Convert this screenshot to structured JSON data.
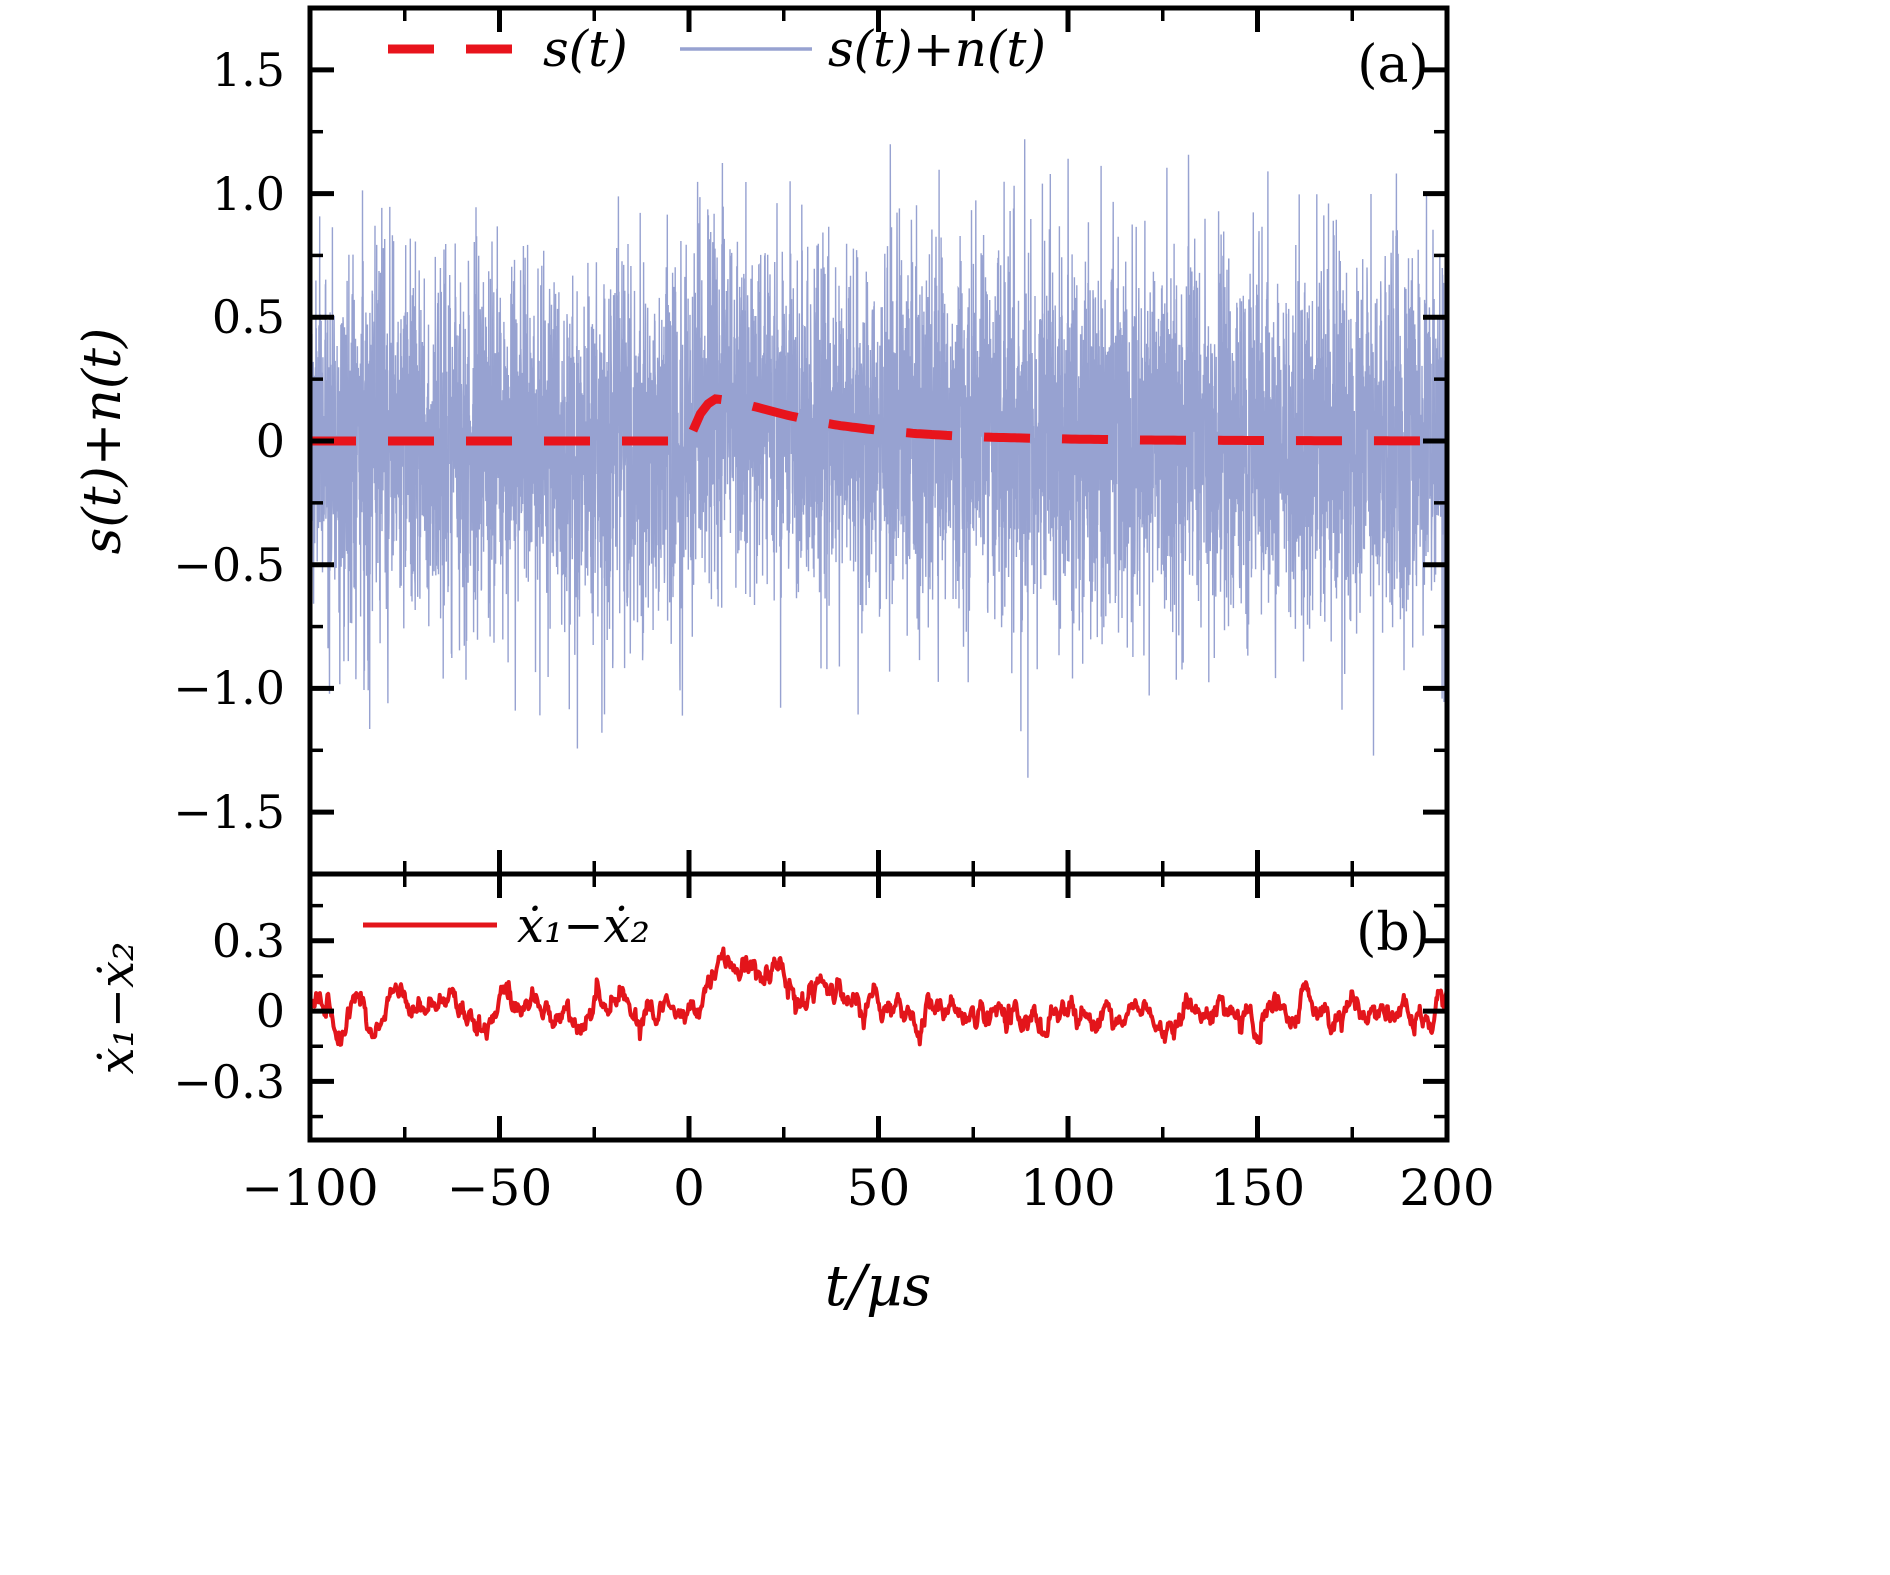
{
  "figure": {
    "panel_a_label": "(a)",
    "panel_b_label": "(b)"
  },
  "colors": {
    "frame": "#000000",
    "signal_red": "#e8141c",
    "noise_blue": "#97a2d1",
    "diff_red": "#e3151b"
  },
  "chart_data": {
    "type": "line",
    "x_axis": {
      "label": "t/µs",
      "lim": [
        -100,
        200
      ],
      "major_ticks": [
        -100,
        -50,
        0,
        50,
        100,
        150,
        200
      ],
      "tick_labels": [
        "−100",
        "−50",
        "0",
        "50",
        "100",
        "150",
        "200"
      ],
      "minor_ticks": [
        -75,
        -25,
        25,
        75,
        125,
        175
      ]
    },
    "panels": [
      {
        "id": "a",
        "corner_label": "(a)",
        "ylabel": "s(t)+n(t)",
        "ylim": [
          -1.75,
          1.75
        ],
        "major_ticks": [
          1.5,
          1.0,
          0.5,
          0,
          -0.5,
          -1.0,
          -1.5
        ],
        "tick_labels": [
          "1.5",
          "1.0",
          "0.5",
          "0",
          "−0.5",
          "−1.0",
          "−1.5"
        ],
        "minor_ticks": [
          -1.25,
          -0.75,
          -0.25,
          0.25,
          0.75,
          1.25
        ],
        "legend": [
          {
            "label": "s(t)",
            "color": "#e8141c",
            "line": "dashed"
          },
          {
            "label": "s(t)+n(t)",
            "color": "#97a2d1",
            "line": "solid"
          }
        ],
        "series": [
          {
            "name": "s(t)",
            "type": "deterministic-pulse",
            "color": "#e8141c",
            "dashed": true,
            "points": [
              [
                -100,
                0
              ],
              [
                0,
                0
              ],
              [
                1,
                0.04
              ],
              [
                3,
                0.11
              ],
              [
                5,
                0.15
              ],
              [
                7,
                0.17
              ],
              [
                10,
                0.165
              ],
              [
                15,
                0.148
              ],
              [
                20,
                0.128
              ],
              [
                25,
                0.108
              ],
              [
                30,
                0.09
              ],
              [
                35,
                0.075
              ],
              [
                40,
                0.062
              ],
              [
                50,
                0.043
              ],
              [
                60,
                0.03
              ],
              [
                70,
                0.021
              ],
              [
                80,
                0.015
              ],
              [
                100,
                0.008
              ],
              [
                120,
                0.004
              ],
              [
                150,
                0.002
              ],
              [
                200,
                0
              ]
            ]
          },
          {
            "name": "s(t)+n(t)",
            "type": "signal-plus-noise",
            "color": "#97a2d1",
            "noise_sigma": 0.37,
            "seed": 1234,
            "n_points": 6000
          }
        ]
      },
      {
        "id": "b",
        "corner_label": "(b)",
        "ylabel": "ẋ₁−ẋ₂",
        "ylim": [
          -0.55,
          0.585
        ],
        "major_ticks": [
          0.3,
          0,
          -0.3
        ],
        "tick_labels": [
          "0.3",
          "0",
          "−0.3"
        ],
        "minor_ticks": [
          -0.45,
          -0.15,
          0.15,
          0.45
        ],
        "legend": [
          {
            "label": "ẋ₁−ẋ₂",
            "color": "#e3151b",
            "line": "solid"
          }
        ],
        "series": [
          {
            "name": "x1dot-minus-x2dot",
            "type": "pulse-plus-smoothed-noise",
            "color": "#e3151b",
            "pulse_points": [
              [
                -100,
                0
              ],
              [
                0,
                0
              ],
              [
                3,
                0.06
              ],
              [
                6,
                0.15
              ],
              [
                9,
                0.2
              ],
              [
                12,
                0.22
              ],
              [
                15,
                0.215
              ],
              [
                18,
                0.19
              ],
              [
                22,
                0.16
              ],
              [
                26,
                0.13
              ],
              [
                30,
                0.09
              ],
              [
                34,
                0.06
              ],
              [
                38,
                0.035
              ],
              [
                44,
                0.015
              ],
              [
                50,
                0.005
              ],
              [
                60,
                0
              ],
              [
                200,
                0
              ]
            ],
            "ar_rho": 0.9,
            "ar_scale": 0.021,
            "seed": 77,
            "n_points": 1500
          }
        ]
      }
    ]
  }
}
